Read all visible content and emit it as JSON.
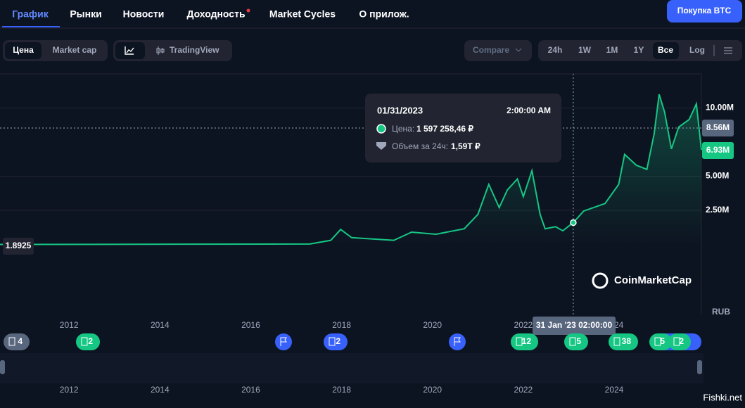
{
  "nav": {
    "tabs": [
      "График",
      "Рынки",
      "Новости",
      "Доходность",
      "Market Cycles",
      "О прилож."
    ],
    "buy_button": "Покупка BTC"
  },
  "toolbar": {
    "metric": [
      "Цена",
      "Market cap"
    ],
    "view": "TradingView",
    "compare": "Compare",
    "ranges": [
      "24h",
      "1W",
      "1M",
      "1Y",
      "Все",
      "Log"
    ]
  },
  "chart_data": {
    "type": "line",
    "x": [
      2010.48,
      2017.3,
      2017.76,
      2017.98,
      2018.22,
      2019.15,
      2019.54,
      2020.08,
      2020.7,
      2021.0,
      2021.24,
      2021.47,
      2021.65,
      2021.87,
      2022.0,
      2022.19,
      2022.37,
      2022.48,
      2022.71,
      2022.87,
      2023.1,
      2023.33,
      2023.8,
      2024.1,
      2024.23,
      2024.49,
      2024.72,
      2024.88,
      2024.99,
      2025.11,
      2025.26,
      2025.42,
      2025.65,
      2025.81,
      2025.92
    ],
    "series": [
      {
        "color": "#16c784",
        "values": [
          0,
          0.03,
          0.3,
          1.1,
          0.5,
          0.3,
          0.9,
          0.75,
          1.15,
          2.2,
          4.4,
          2.7,
          4.0,
          4.8,
          3.5,
          5.4,
          2.2,
          1.15,
          1.3,
          1.0,
          1.6,
          2.45,
          3.0,
          4.4,
          6.6,
          5.8,
          5.5,
          8.1,
          11.0,
          9.7,
          7.0,
          8.6,
          9.15,
          10.3,
          6.93
        ]
      }
    ],
    "xlim": [
      2010.48,
      2025.92
    ],
    "xticks": [
      2012,
      2014,
      2016,
      2018,
      2020,
      2022,
      2024
    ],
    "ylim": [
      -5.13,
      12.5
    ],
    "yticks": [
      {
        "value": 10,
        "label": "10.00M"
      },
      {
        "value": 5,
        "label": "5.00M"
      },
      {
        "value": 2.5,
        "label": "2.50M"
      }
    ],
    "grid": true,
    "currency": "RUB",
    "navigator_color": "#3861fb",
    "start_label": "1.8925",
    "crosshair_label": "8.56M",
    "last_label": "6.93M"
  },
  "tooltip": {
    "date": "01/31/2023",
    "time": "2:00:00 AM",
    "price_label": "Цена:",
    "price": "1 597 258,46 ₽",
    "volume_label": "Объем за 24ч:",
    "volume": "1,59T ₽",
    "crosshair_time": "31 Jan '23 02:00:00"
  },
  "events": [
    "4",
    "2",
    "2",
    "12",
    "5",
    "38",
    "5",
    "2"
  ],
  "brand": "CoinMarketCap",
  "watermark": "Fishki.net"
}
